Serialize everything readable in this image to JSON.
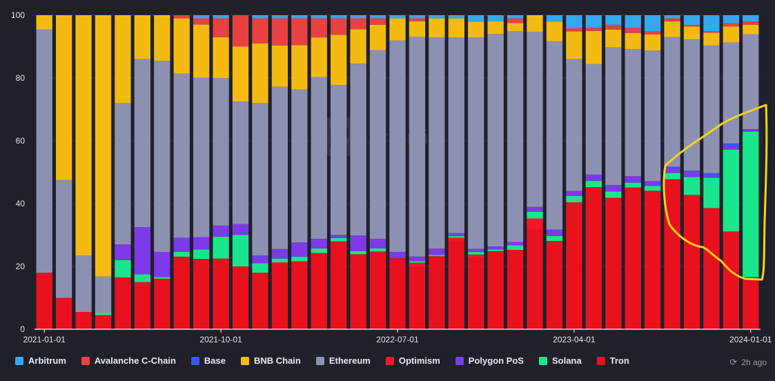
{
  "chart_data": {
    "type": "bar",
    "stacked": true,
    "title": "",
    "xlabel": "",
    "ylabel": "",
    "ylim": [
      0,
      100
    ],
    "yticks": [
      "0",
      "20",
      "40",
      "60",
      "80",
      "100"
    ],
    "xtick_labels": [
      "2021-01-01",
      "2021-10-01",
      "2022-07-01",
      "2023-04-01",
      "2024-01-01"
    ],
    "categories": [
      "2021-01",
      "2021-02",
      "2021-03",
      "2021-04",
      "2021-05",
      "2021-06",
      "2021-07",
      "2021-08",
      "2021-09",
      "2021-10",
      "2021-11",
      "2021-12",
      "2022-01",
      "2022-02",
      "2022-03",
      "2022-04",
      "2022-05",
      "2022-06",
      "2022-07",
      "2022-08",
      "2022-09",
      "2022-10",
      "2022-11",
      "2022-12",
      "2023-01",
      "2023-02",
      "2023-03",
      "2023-04",
      "2023-05",
      "2023-06",
      "2023-07",
      "2023-08",
      "2023-09",
      "2023-10",
      "2023-11",
      "2023-12",
      "2024-01"
    ],
    "series": [
      {
        "name": "Tron",
        "color": "#e8111e",
        "values": [
          18,
          10,
          5.5,
          4.5,
          16.5,
          15,
          16,
          23,
          22.5,
          22.5,
          20,
          18,
          20.5,
          21.5,
          24,
          27,
          24,
          24.5,
          22.5,
          20,
          23,
          28,
          22.5,
          25,
          25,
          30,
          27,
          39,
          45,
          41,
          44,
          43,
          48,
          41.5,
          38,
          30.5,
          16.5
        ]
      },
      {
        "name": "Optimism",
        "color": "#f21628",
        "values": [
          0,
          0,
          0,
          0,
          0,
          0,
          0,
          0,
          0,
          0,
          0,
          0,
          0.5,
          0,
          0,
          0,
          0,
          0,
          0,
          1.5,
          0,
          1,
          1,
          0,
          0,
          3.5,
          0,
          0,
          0,
          0,
          0,
          0,
          0,
          0,
          0,
          0,
          0
        ]
      },
      {
        "name": "Solana",
        "color": "#19e68c",
        "values": [
          0,
          0,
          0,
          0.8,
          5.5,
          2.5,
          0.5,
          1.5,
          3,
          7,
          10,
          3,
          1.2,
          1.5,
          1.5,
          1,
          1,
          1,
          0,
          0.5,
          0.4,
          0.5,
          0.8,
          0.5,
          1.5,
          2,
          1.5,
          2,
          2,
          2,
          1.5,
          1.5,
          2,
          5.5,
          9.5,
          25.5,
          46
        ]
      },
      {
        "name": "Polygon PoS",
        "color": "#7d3ae8",
        "values": [
          0,
          0,
          0,
          0,
          5,
          15,
          8,
          4.5,
          4,
          3.5,
          3.5,
          2.5,
          3,
          4.5,
          3,
          1,
          5,
          3,
          2,
          1.5,
          2,
          1,
          1,
          1,
          1,
          1.5,
          2,
          1.5,
          2,
          2,
          2,
          1.5,
          1.5,
          1.5,
          1,
          1,
          0.3
        ]
      },
      {
        "name": "Base",
        "color": "#3a5be8",
        "values": [
          0,
          0,
          0,
          0,
          0,
          0,
          0,
          0,
          0,
          0,
          0,
          0,
          0,
          0,
          0,
          0,
          0,
          0,
          0,
          0,
          0,
          0,
          0,
          0,
          0,
          0,
          0,
          0,
          0,
          0,
          0,
          0,
          0.5,
          0.5,
          0.5,
          1,
          0.5
        ]
      },
      {
        "name": "Ethereum",
        "color": "#8c91b2",
        "values": [
          77.5,
          37.5,
          18,
          11.5,
          45,
          53.5,
          60.5,
          52,
          51,
          47,
          39,
          48.5,
          51,
          48.5,
          51,
          46,
          55,
          59.5,
          67,
          71,
          66.5,
          62,
          66.5,
          68,
          66.5,
          53,
          57.5,
          40.5,
          35,
          43,
          39.5,
          40.5,
          41.5,
          40.5,
          40,
          31.5,
          30
        ]
      },
      {
        "name": "BNB Chain",
        "color": "#f3ba12",
        "values": [
          4.5,
          52.5,
          76.5,
          83.5,
          28,
          14,
          14.5,
          17.5,
          17,
          13,
          17.5,
          19,
          13,
          14,
          12.5,
          15.5,
          11,
          8,
          7,
          5,
          6,
          6,
          5,
          4,
          2.5,
          5,
          6,
          8.5,
          10.5,
          5.5,
          5,
          5,
          5,
          4,
          4,
          5,
          3
        ]
      },
      {
        "name": "Avalanche C-Chain",
        "color": "#e84142",
        "values": [
          0,
          0,
          0,
          0,
          0,
          0,
          0,
          1,
          2,
          6,
          10,
          8,
          8.5,
          8.5,
          6,
          5,
          3.5,
          2,
          0,
          1,
          0,
          0,
          0,
          0,
          1.5,
          0,
          0,
          1,
          1,
          1.5,
          1.5,
          1,
          1,
          0.5,
          0.5,
          1,
          1
        ]
      },
      {
        "name": "Arbitrum",
        "color": "#33a8ef",
        "values": [
          0,
          0,
          0,
          0,
          0,
          0,
          0,
          0,
          1,
          1,
          0,
          1,
          1,
          1,
          1,
          1,
          1,
          1,
          1,
          1,
          1,
          1,
          2,
          2,
          1,
          0,
          2,
          4,
          4,
          3,
          4,
          5,
          1,
          3,
          5,
          2.5,
          2
        ]
      }
    ]
  },
  "legend": [
    {
      "label": "Arbitrum",
      "color": "#33a8ef"
    },
    {
      "label": "Avalanche C-Chain",
      "color": "#e84142"
    },
    {
      "label": "Base",
      "color": "#3a5be8"
    },
    {
      "label": "BNB Chain",
      "color": "#f3ba12"
    },
    {
      "label": "Ethereum",
      "color": "#8c91b2"
    },
    {
      "label": "Optimism",
      "color": "#f21628"
    },
    {
      "label": "Polygon PoS",
      "color": "#7d3ae8"
    },
    {
      "label": "Solana",
      "color": "#19e68c"
    },
    {
      "label": "Tron",
      "color": "#e8111e"
    }
  ],
  "watermark": "Artemis",
  "updated": "2h ago",
  "colors": {
    "background": "#1f2029",
    "annotation": "#f7d21a",
    "axis": "#ffffff",
    "grid": "#2e303b"
  }
}
